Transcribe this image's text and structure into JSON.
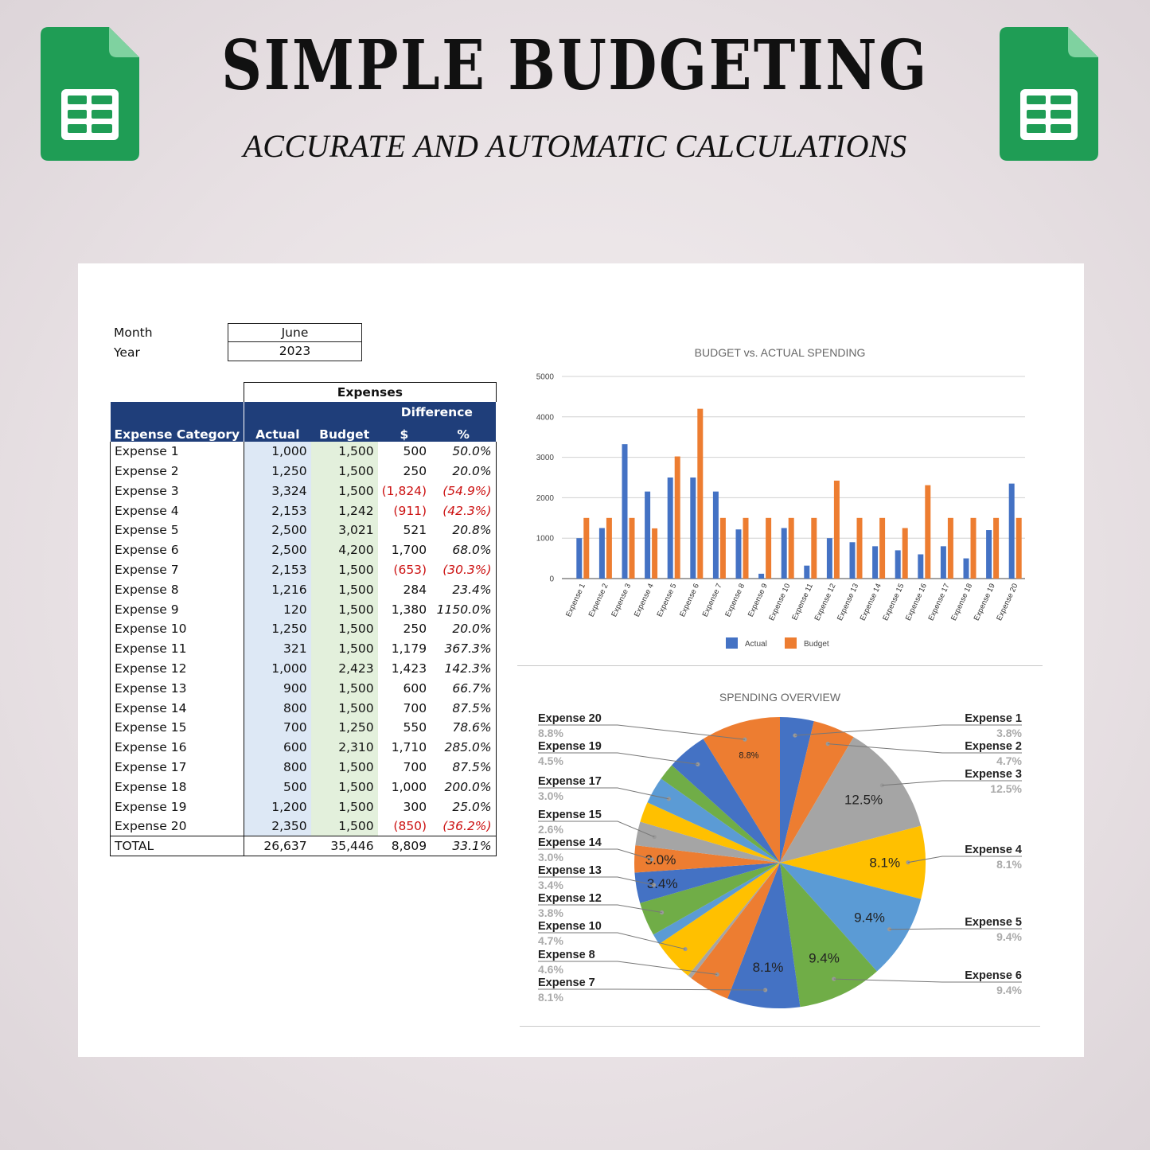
{
  "header": {
    "title": "SIMPLE BUDGETING",
    "subtitle": "ACCURATE AND AUTOMATIC CALCULATIONS"
  },
  "meta": {
    "month_label": "Month",
    "month_value": "June",
    "year_label": "Year",
    "year_value": "2023"
  },
  "table": {
    "group_header": "Expenses",
    "difference_header": "Difference",
    "columns": {
      "category": "Expense Category",
      "actual": "Actual",
      "budget": "Budget",
      "diff_dollar": "$",
      "diff_pct": "%"
    },
    "rows": [
      {
        "category": "Expense 1",
        "actual": "1,000",
        "budget": "1,500",
        "diff": "500",
        "pct": "50.0%",
        "neg": false
      },
      {
        "category": "Expense 2",
        "actual": "1,250",
        "budget": "1,500",
        "diff": "250",
        "pct": "20.0%",
        "neg": false
      },
      {
        "category": "Expense 3",
        "actual": "3,324",
        "budget": "1,500",
        "diff": "(1,824)",
        "pct": "(54.9%)",
        "neg": true
      },
      {
        "category": "Expense 4",
        "actual": "2,153",
        "budget": "1,242",
        "diff": "(911)",
        "pct": "(42.3%)",
        "neg": true
      },
      {
        "category": "Expense 5",
        "actual": "2,500",
        "budget": "3,021",
        "diff": "521",
        "pct": "20.8%",
        "neg": false
      },
      {
        "category": "Expense 6",
        "actual": "2,500",
        "budget": "4,200",
        "diff": "1,700",
        "pct": "68.0%",
        "neg": false
      },
      {
        "category": "Expense 7",
        "actual": "2,153",
        "budget": "1,500",
        "diff": "(653)",
        "pct": "(30.3%)",
        "neg": true
      },
      {
        "category": "Expense 8",
        "actual": "1,216",
        "budget": "1,500",
        "diff": "284",
        "pct": "23.4%",
        "neg": false
      },
      {
        "category": "Expense 9",
        "actual": "120",
        "budget": "1,500",
        "diff": "1,380",
        "pct": "1150.0%",
        "neg": false
      },
      {
        "category": "Expense 10",
        "actual": "1,250",
        "budget": "1,500",
        "diff": "250",
        "pct": "20.0%",
        "neg": false
      },
      {
        "category": "Expense 11",
        "actual": "321",
        "budget": "1,500",
        "diff": "1,179",
        "pct": "367.3%",
        "neg": false
      },
      {
        "category": "Expense 12",
        "actual": "1,000",
        "budget": "2,423",
        "diff": "1,423",
        "pct": "142.3%",
        "neg": false
      },
      {
        "category": "Expense 13",
        "actual": "900",
        "budget": "1,500",
        "diff": "600",
        "pct": "66.7%",
        "neg": false
      },
      {
        "category": "Expense 14",
        "actual": "800",
        "budget": "1,500",
        "diff": "700",
        "pct": "87.5%",
        "neg": false
      },
      {
        "category": "Expense 15",
        "actual": "700",
        "budget": "1,250",
        "diff": "550",
        "pct": "78.6%",
        "neg": false
      },
      {
        "category": "Expense 16",
        "actual": "600",
        "budget": "2,310",
        "diff": "1,710",
        "pct": "285.0%",
        "neg": false
      },
      {
        "category": "Expense 17",
        "actual": "800",
        "budget": "1,500",
        "diff": "700",
        "pct": "87.5%",
        "neg": false
      },
      {
        "category": "Expense 18",
        "actual": "500",
        "budget": "1,500",
        "diff": "1,000",
        "pct": "200.0%",
        "neg": false
      },
      {
        "category": "Expense 19",
        "actual": "1,200",
        "budget": "1,500",
        "diff": "300",
        "pct": "25.0%",
        "neg": false
      },
      {
        "category": "Expense 20",
        "actual": "2,350",
        "budget": "1,500",
        "diff": "(850)",
        "pct": "(36.2%)",
        "neg": true
      }
    ],
    "total": {
      "category": "TOTAL",
      "actual": "26,637",
      "budget": "35,446",
      "diff": "8,809",
      "pct": "33.1%"
    }
  },
  "colors": {
    "table_header": "#1f3e7a",
    "actual": "#4472c4",
    "budget": "#ed7d31",
    "negative": "#cc1111"
  },
  "icons": [
    "google-sheets-icon"
  ],
  "chart_data": [
    {
      "type": "bar",
      "title": "BUDGET vs. ACTUAL SPENDING",
      "categories": [
        "Expense 1",
        "Expense 2",
        "Expense 3",
        "Expense 4",
        "Expense 5",
        "Expense 6",
        "Expense 7",
        "Expense 8",
        "Expense 9",
        "Expense 10",
        "Expense 11",
        "Expense 12",
        "Expense 13",
        "Expense 14",
        "Expense 15",
        "Expense 16",
        "Expense 17",
        "Expense 18",
        "Expense 19",
        "Expense 20"
      ],
      "series": [
        {
          "name": "Actual",
          "color": "#4472c4",
          "values": [
            1000,
            1250,
            3324,
            2153,
            2500,
            2500,
            2153,
            1216,
            120,
            1250,
            321,
            1000,
            900,
            800,
            700,
            600,
            800,
            500,
            1200,
            2350
          ]
        },
        {
          "name": "Budget",
          "color": "#ed7d31",
          "values": [
            1500,
            1500,
            1500,
            1242,
            3021,
            4200,
            1500,
            1500,
            1500,
            1500,
            1500,
            2423,
            1500,
            1500,
            1250,
            2310,
            1500,
            1500,
            1500,
            1500
          ]
        }
      ],
      "ylim": [
        0,
        5000
      ],
      "yticks": [
        0,
        1000,
        2000,
        3000,
        4000,
        5000
      ],
      "grid": true,
      "legend": "bottom"
    },
    {
      "type": "pie",
      "title": "SPENDING OVERVIEW",
      "slices": [
        {
          "label": "Expense 1",
          "value": 1000,
          "pct": "3.8%",
          "color": "#4472c4"
        },
        {
          "label": "Expense 2",
          "value": 1250,
          "pct": "4.7%",
          "color": "#ed7d31"
        },
        {
          "label": "Expense 3",
          "value": 3324,
          "pct": "12.5%",
          "color": "#a5a5a5"
        },
        {
          "label": "Expense 4",
          "value": 2153,
          "pct": "8.1%",
          "color": "#ffc000"
        },
        {
          "label": "Expense 5",
          "value": 2500,
          "pct": "9.4%",
          "color": "#5b9bd5"
        },
        {
          "label": "Expense 6",
          "value": 2500,
          "pct": "9.4%",
          "color": "#70ad47"
        },
        {
          "label": "Expense 7",
          "value": 2153,
          "pct": "8.1%",
          "color": "#4472c4"
        },
        {
          "label": "Expense 8",
          "value": 1216,
          "pct": "4.6%",
          "color": "#ed7d31"
        },
        {
          "label": "Expense 9",
          "value": 120,
          "pct": "",
          "color": "#a5a5a5"
        },
        {
          "label": "Expense 10",
          "value": 1250,
          "pct": "4.7%",
          "color": "#ffc000"
        },
        {
          "label": "Expense 11",
          "value": 321,
          "pct": "",
          "color": "#5b9bd5"
        },
        {
          "label": "Expense 12",
          "value": 1000,
          "pct": "3.8%",
          "color": "#70ad47"
        },
        {
          "label": "Expense 13",
          "value": 900,
          "pct": "3.4%",
          "color": "#4472c4"
        },
        {
          "label": "Expense 14",
          "value": 800,
          "pct": "3.0%",
          "color": "#ed7d31"
        },
        {
          "label": "Expense 15",
          "value": 700,
          "pct": "2.6%",
          "color": "#a5a5a5"
        },
        {
          "label": "Expense 16",
          "value": 600,
          "pct": "",
          "color": "#ffc000"
        },
        {
          "label": "Expense 17",
          "value": 800,
          "pct": "3.0%",
          "color": "#5b9bd5"
        },
        {
          "label": "Expense 18",
          "value": 500,
          "pct": "",
          "color": "#70ad47"
        },
        {
          "label": "Expense 19",
          "value": 1200,
          "pct": "4.5%",
          "color": "#4472c4"
        },
        {
          "label": "Expense 20",
          "value": 2350,
          "pct": "8.8%",
          "color": "#ed7d31"
        }
      ],
      "inner_labels": [
        "12.5%",
        "8.1%",
        "9.4%",
        "9.4%",
        "8.1%",
        "3.4%",
        "3.0%",
        "8.8%"
      ]
    }
  ]
}
